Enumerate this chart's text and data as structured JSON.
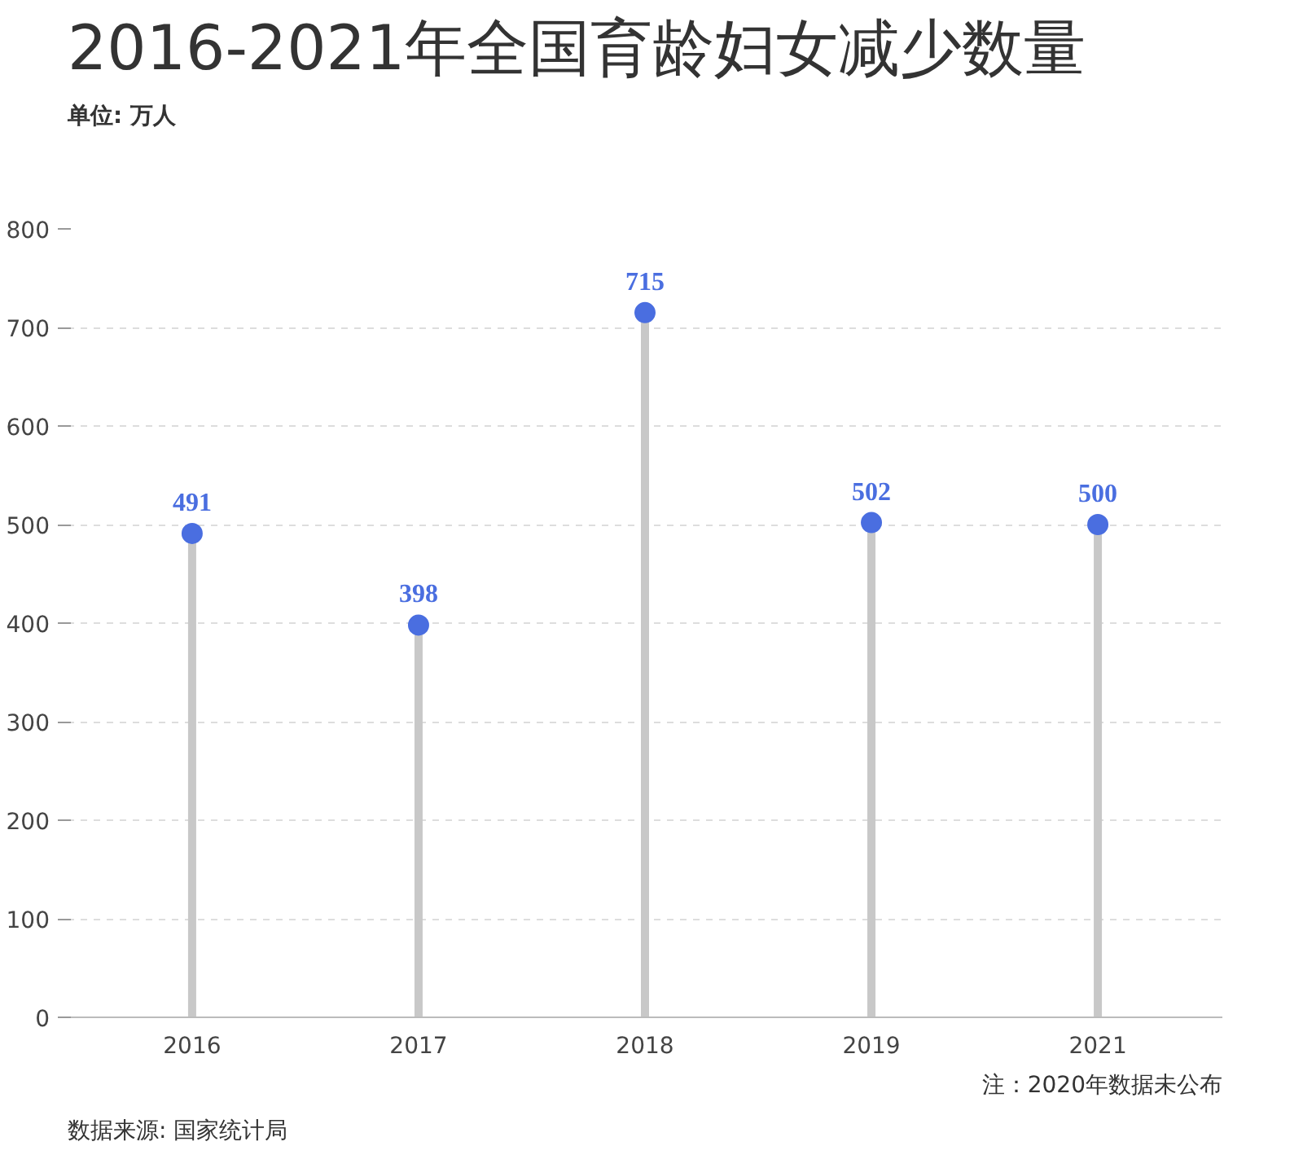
{
  "chart_data": {
    "type": "lollipop",
    "title": "2016-2021年全国育龄妇女减少数量",
    "subtitle": "单位: 万人",
    "categories": [
      "2016",
      "2017",
      "2018",
      "2019",
      "2021"
    ],
    "values": [
      491,
      398,
      715,
      502,
      500
    ],
    "color": "#4a6ee0",
    "ylim": [
      0,
      800
    ],
    "yticks": [
      0,
      100,
      200,
      300,
      400,
      500,
      600,
      700,
      800
    ],
    "grid": "y",
    "data_labels": true,
    "annotations": [
      "数据来源: 国家统计局",
      "注：2020年数据未公布"
    ]
  }
}
